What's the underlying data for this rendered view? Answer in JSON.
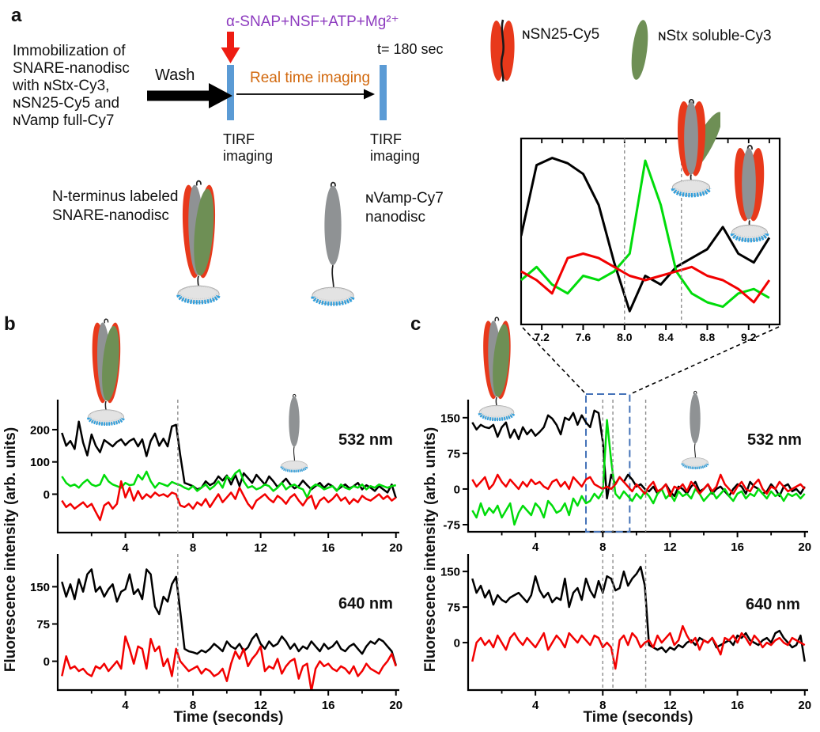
{
  "colors": {
    "trace_black": "#000000",
    "trace_green": "#00dc0a",
    "trace_red": "#f20000",
    "purple": "#8d3bbf",
    "orange": "#d2690e",
    "timeline_bar": "#5b9bd5",
    "zoom_box": "#4472b8",
    "event_line": "#8c8c8c",
    "arrow_red": "#ee1c12",
    "icon_red": "#e8391b",
    "icon_green": "#6e8f55",
    "icon_gray": "#8f9294",
    "disc_blue": "#2f9fdd"
  },
  "panel_a": {
    "label": "a",
    "intro_lines": [
      "Immobilization of",
      "SNARE-nanodisc",
      "with ɴStx-Cy3,",
      "ɴSN25-Cy5 and",
      "ɴVamp full-Cy7"
    ],
    "wash_label": "Wash",
    "treatment_label": "α-SNAP+NSF+ATP+Mg²⁺",
    "realtime_label": "Real time imaging",
    "timepoint_label": "t= 180 sec",
    "tirf_lines": [
      "TIRF",
      "imaging"
    ],
    "snare_caption_lines": [
      "N-terminus labeled",
      "SNARE-nanodisc"
    ],
    "vamp_caption_lines": [
      "ɴVamp-Cy7",
      "nanodisc"
    ],
    "legend": {
      "sn25_label": "ɴSN25-Cy5",
      "stx_label": "ɴStx soluble-Cy3"
    }
  },
  "panel_b": {
    "label": "b",
    "ylabel": "Fluorescence intensity (arb. units)",
    "xlabel": "Time (seconds)",
    "wavelength_top": "532 nm",
    "wavelength_bottom": "640 nm"
  },
  "panel_c": {
    "label": "c",
    "ylabel": "Fluorescence intensity (arb. units)",
    "xlabel": "Time (seconds)",
    "wavelength_top": "532 nm",
    "wavelength_bottom": "640 nm"
  },
  "chart_data": [
    {
      "id": "b_532",
      "type": "line",
      "panel": "b",
      "title": "532 nm",
      "x0": 0.25,
      "dt": 0.25,
      "xlim": [
        0,
        20.2
      ],
      "ylim": [
        -119,
        293
      ],
      "xticks": [
        4,
        8,
        12,
        16,
        20
      ],
      "xminor": [
        2,
        6,
        10,
        14,
        18
      ],
      "yticks": [
        0,
        100,
        200
      ],
      "dashed_marker_times": [
        7.1
      ],
      "series": [
        {
          "name": "black-trace",
          "color": "trace_black",
          "values": [
            190,
            150,
            165,
            140,
            225,
            160,
            120,
            185,
            150,
            130,
            168,
            158,
            148,
            162,
            170,
            152,
            165,
            172,
            148,
            170,
            118,
            165,
            188,
            150,
            172,
            148,
            210,
            215,
            120,
            35,
            30,
            25,
            15,
            20,
            40,
            28,
            35,
            55,
            42,
            58,
            30,
            60,
            25,
            65,
            50,
            35,
            60,
            45,
            30,
            55,
            40,
            22,
            35,
            48,
            30,
            18,
            25,
            42,
            28,
            15,
            25,
            35,
            20,
            32,
            25,
            12,
            22,
            30,
            18,
            25,
            35,
            15,
            28,
            20,
            10,
            25,
            15,
            5,
            30,
            -12
          ]
        },
        {
          "name": "green-trace",
          "color": "trace_green",
          "values": [
            55,
            35,
            25,
            30,
            20,
            35,
            45,
            30,
            25,
            30,
            60,
            40,
            30,
            25,
            20,
            35,
            28,
            30,
            60,
            45,
            70,
            40,
            20,
            35,
            30,
            25,
            38,
            32,
            28,
            20,
            15,
            25,
            10,
            20,
            30,
            15,
            25,
            40,
            20,
            55,
            45,
            65,
            75,
            40,
            20,
            25,
            15,
            20,
            30,
            25,
            10,
            20,
            35,
            15,
            25,
            30,
            20,
            15,
            -10,
            20,
            30,
            25,
            15,
            20,
            25,
            10,
            30,
            20,
            15,
            25,
            20,
            30,
            15,
            25,
            20,
            30,
            25,
            20,
            25,
            28
          ]
        },
        {
          "name": "red-trace",
          "color": "trace_red",
          "values": [
            -20,
            -40,
            -30,
            -45,
            -35,
            -25,
            -40,
            -30,
            -55,
            -80,
            -35,
            -25,
            -45,
            -30,
            40,
            -10,
            20,
            -20,
            10,
            -15,
            0,
            -10,
            5,
            -5,
            0,
            -8,
            5,
            0,
            -35,
            -40,
            -30,
            -45,
            -25,
            -35,
            -15,
            -40,
            -20,
            0,
            -25,
            -10,
            5,
            -15,
            20,
            -5,
            -30,
            -45,
            -20,
            -10,
            0,
            -15,
            -25,
            -5,
            -15,
            -30,
            -10,
            0,
            -20,
            -35,
            -15,
            -5,
            -45,
            -20,
            -10,
            -25,
            -15,
            0,
            -20,
            -10,
            -30,
            -15,
            -25,
            -5,
            -15,
            -20,
            -10,
            0,
            -15,
            -5,
            -20,
            -10
          ]
        }
      ]
    },
    {
      "id": "b_640",
      "type": "line",
      "panel": "b",
      "title": "640 nm",
      "x0": 0.25,
      "dt": 0.25,
      "xlim": [
        0,
        20.2
      ],
      "ylim": [
        -58,
        216
      ],
      "xticks": [
        4,
        8,
        12,
        16,
        20
      ],
      "xminor": [
        2,
        6,
        10,
        14,
        18
      ],
      "yticks": [
        0,
        75,
        150
      ],
      "dashed_marker_times": [
        7.1
      ],
      "series": [
        {
          "name": "black-trace",
          "color": "trace_black",
          "values": [
            160,
            130,
            155,
            125,
            165,
            140,
            175,
            185,
            140,
            150,
            130,
            145,
            155,
            120,
            140,
            145,
            175,
            135,
            145,
            125,
            185,
            175,
            110,
            95,
            130,
            120,
            155,
            170,
            100,
            25,
            20,
            18,
            15,
            22,
            18,
            25,
            35,
            28,
            20,
            40,
            30,
            25,
            35,
            20,
            28,
            45,
            55,
            35,
            25,
            40,
            30,
            35,
            50,
            40,
            25,
            35,
            20,
            30,
            25,
            40,
            30,
            20,
            35,
            25,
            30,
            40,
            25,
            20,
            30,
            35,
            25,
            15,
            30,
            40,
            35,
            45,
            40,
            30,
            20,
            -8
          ]
        },
        {
          "name": "red-trace",
          "color": "trace_red",
          "values": [
            -30,
            10,
            -15,
            -10,
            -20,
            -15,
            -25,
            -30,
            -10,
            -15,
            -5,
            -20,
            -10,
            0,
            -15,
            50,
            25,
            -5,
            30,
            25,
            -15,
            45,
            20,
            30,
            -10,
            5,
            -30,
            25,
            0,
            -10,
            -20,
            -15,
            -10,
            -25,
            -15,
            -20,
            -30,
            -25,
            -15,
            -40,
            -5,
            20,
            5,
            25,
            -10,
            5,
            15,
            30,
            -20,
            -10,
            -15,
            5,
            -25,
            -10,
            0,
            5,
            -35,
            -10,
            -5,
            -60,
            -15,
            0,
            -10,
            -5,
            -15,
            -20,
            -10,
            -15,
            -25,
            -10,
            -30,
            -20,
            -5,
            -15,
            -20,
            -25,
            -10,
            0,
            15,
            -10
          ]
        }
      ]
    },
    {
      "id": "c_532",
      "type": "line",
      "panel": "c",
      "title": "532 nm",
      "x0": 0.25,
      "dt": 0.25,
      "xlim": [
        0,
        20.2
      ],
      "ylim": [
        -90,
        188
      ],
      "xticks": [
        4,
        8,
        12,
        16,
        20
      ],
      "xminor": [
        2,
        6,
        10,
        14,
        18
      ],
      "yticks": [
        -75,
        0,
        75,
        150
      ],
      "dashed_marker_times": [
        8.0,
        8.6,
        10.55
      ],
      "zoom_box": [
        7.0,
        9.6
      ],
      "series": [
        {
          "name": "black-trace",
          "color": "trace_black",
          "values": [
            140,
            125,
            135,
            130,
            128,
            135,
            110,
            130,
            140,
            108,
            125,
            105,
            130,
            115,
            125,
            112,
            120,
            130,
            155,
            148,
            135,
            115,
            150,
            145,
            160,
            135,
            155,
            140,
            130,
            165,
            160,
            100,
            -20,
            30,
            10,
            25,
            15,
            30,
            20,
            5,
            10,
            0,
            -5,
            5,
            -10,
            0,
            10,
            -5,
            -15,
            5,
            0,
            -10,
            5,
            15,
            -5,
            0,
            10,
            -10,
            0,
            5,
            -5,
            -15,
            0,
            10,
            5,
            -10,
            15,
            5,
            0,
            -10,
            -5,
            10,
            0,
            -15,
            5,
            10,
            -5,
            0,
            -10,
            5
          ]
        },
        {
          "name": "green-trace",
          "color": "trace_green",
          "values": [
            -45,
            -60,
            -30,
            -55,
            -40,
            -50,
            -35,
            -60,
            -45,
            -30,
            -75,
            -50,
            -35,
            -45,
            -55,
            -30,
            -40,
            -60,
            -25,
            -35,
            -50,
            -45,
            -30,
            -55,
            -20,
            -35,
            -15,
            -30,
            -25,
            -10,
            -20,
            -5,
            145,
            60,
            -10,
            -20,
            -5,
            -15,
            -25,
            -10,
            -20,
            -5,
            -15,
            -30,
            -10,
            0,
            -20,
            -10,
            -25,
            -5,
            -15,
            -10,
            -20,
            0,
            -10,
            -25,
            -15,
            -5,
            -20,
            -10,
            0,
            -15,
            -25,
            -10,
            -5,
            -20,
            -10,
            -15,
            0,
            -10,
            -20,
            -5,
            -15,
            -10,
            -25,
            -10,
            -15,
            -10,
            -20,
            -10
          ]
        },
        {
          "name": "red-trace",
          "color": "trace_red",
          "values": [
            20,
            5,
            15,
            25,
            0,
            10,
            30,
            15,
            5,
            20,
            10,
            0,
            15,
            5,
            20,
            10,
            15,
            5,
            0,
            15,
            20,
            5,
            15,
            0,
            25,
            15,
            5,
            20,
            25,
            10,
            5,
            0,
            5,
            0,
            10,
            25,
            15,
            5,
            -5,
            10,
            0,
            -10,
            5,
            15,
            -5,
            0,
            10,
            -15,
            5,
            0,
            10,
            -5,
            15,
            5,
            -10,
            0,
            10,
            -5,
            5,
            30,
            10,
            0,
            -10,
            5,
            15,
            0,
            -5,
            10,
            20,
            0,
            -10,
            5,
            0,
            15,
            5,
            -5,
            0,
            5,
            10,
            0
          ]
        }
      ]
    },
    {
      "id": "c_640",
      "type": "line",
      "panel": "c",
      "title": "640 nm",
      "x0": 0.25,
      "dt": 0.25,
      "xlim": [
        0,
        20.2
      ],
      "ylim": [
        -100,
        187
      ],
      "xticks": [
        4,
        8,
        12,
        16,
        20
      ],
      "xminor": [
        2,
        6,
        10,
        14,
        18
      ],
      "yticks": [
        0,
        75,
        150
      ],
      "dashed_marker_times": [
        8.0,
        8.6,
        10.55
      ],
      "series": [
        {
          "name": "black-trace",
          "color": "trace_black",
          "values": [
            135,
            105,
            120,
            95,
            110,
            80,
            100,
            90,
            85,
            95,
            100,
            105,
            95,
            85,
            100,
            140,
            110,
            95,
            105,
            85,
            95,
            90,
            135,
            75,
            105,
            115,
            90,
            135,
            110,
            95,
            130,
            105,
            140,
            135,
            110,
            115,
            150,
            120,
            135,
            145,
            160,
            120,
            -5,
            -10,
            -15,
            -10,
            -20,
            -10,
            -15,
            -5,
            -10,
            0,
            5,
            -5,
            10,
            5,
            0,
            10,
            -10,
            -5,
            0,
            5,
            -5,
            15,
            10,
            20,
            5,
            0,
            -5,
            5,
            10,
            0,
            20,
            25,
            10,
            0,
            -10,
            -5,
            15,
            -40
          ]
        },
        {
          "name": "red-trace",
          "color": "trace_red",
          "values": [
            -40,
            0,
            10,
            -5,
            5,
            -10,
            15,
            0,
            -15,
            10,
            20,
            5,
            -5,
            10,
            0,
            -10,
            5,
            20,
            -15,
            0,
            15,
            5,
            -10,
            20,
            10,
            0,
            15,
            5,
            -5,
            15,
            10,
            -10,
            0,
            -10,
            -55,
            5,
            15,
            -5,
            20,
            10,
            -10,
            0,
            5,
            -10,
            15,
            0,
            10,
            20,
            -5,
            5,
            35,
            15,
            0,
            10,
            -15,
            5,
            0,
            10,
            -5,
            -25,
            10,
            5,
            15,
            0,
            20,
            10,
            -5,
            15,
            5,
            -10,
            0,
            -5,
            5,
            10,
            0,
            -5,
            10,
            5,
            0,
            -5
          ]
        }
      ]
    },
    {
      "id": "inset_c",
      "type": "line",
      "panel": "a-inset",
      "title": "",
      "x0": 7.0,
      "dt": 0.15,
      "xlim": [
        7.0,
        9.5
      ],
      "ylim": [
        -40,
        170
      ],
      "xticks": [
        7.2,
        7.6,
        8.0,
        8.4,
        8.8,
        9.2
      ],
      "xminor": [
        7.4,
        7.8,
        8.2,
        8.6,
        9.0,
        9.4
      ],
      "yticks": [],
      "dashed_marker_times": [
        8.0,
        8.55
      ],
      "series": [
        {
          "name": "black-trace",
          "color": "trace_black",
          "values": [
            60,
            140,
            148,
            142,
            130,
            95,
            30,
            -25,
            15,
            5,
            25,
            35,
            45,
            70,
            40,
            30,
            58
          ]
        },
        {
          "name": "green-trace",
          "color": "trace_green",
          "values": [
            10,
            25,
            5,
            -5,
            15,
            10,
            20,
            40,
            145,
            95,
            20,
            -5,
            -15,
            -20,
            -5,
            0,
            -10
          ]
        },
        {
          "name": "red-trace",
          "color": "trace_red",
          "values": [
            20,
            10,
            -5,
            35,
            40,
            35,
            25,
            15,
            10,
            15,
            20,
            25,
            15,
            10,
            0,
            -15,
            10
          ]
        }
      ]
    }
  ]
}
